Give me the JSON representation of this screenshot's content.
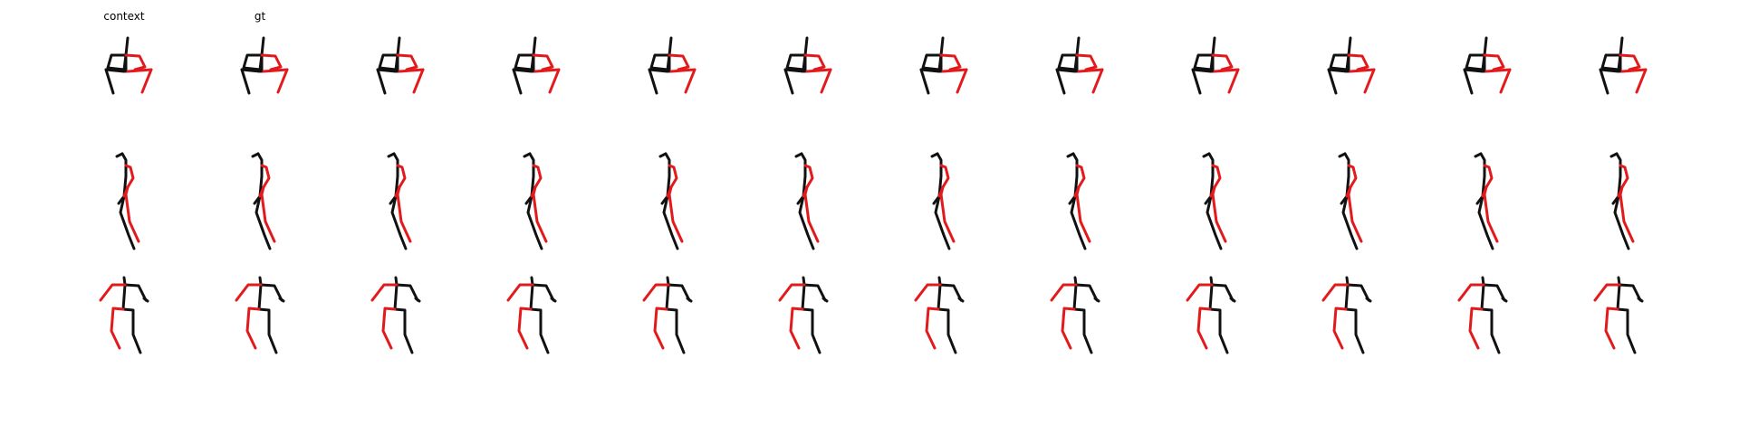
{
  "figure": {
    "column_titles": [
      "context",
      "gt",
      "",
      "",
      "",
      "",
      "",
      "",
      "",
      "",
      "",
      ""
    ],
    "frame_count": 12,
    "view_rows": 3,
    "colors": {
      "left_side": "#e31a1c",
      "right_side": "#111111",
      "background": "#ffffff"
    }
  }
}
